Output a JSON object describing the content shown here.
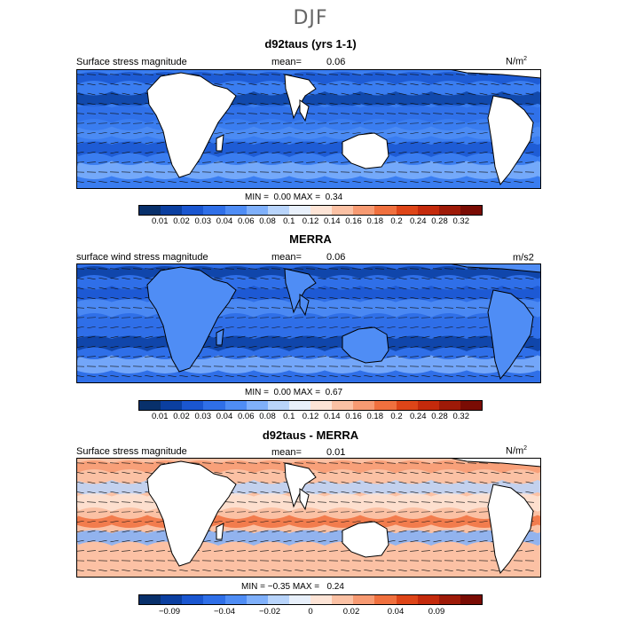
{
  "season": "DJF",
  "colors": [
    "#08306b",
    "#0b3fa0",
    "#1a56d0",
    "#2f6fe8",
    "#4f8df5",
    "#7fb0fb",
    "#b8d4fb",
    "#e8f0fb",
    "#fde4d6",
    "#fbc1a4",
    "#f79a72",
    "#f0703e",
    "#de4518",
    "#c42a0c",
    "#9e1a08",
    "#7a0c04"
  ],
  "panels": [
    {
      "title": "d92taus (yrs 1-1)",
      "left_label": "Surface stress magnitude",
      "mean_label": "mean=",
      "mean_value": "0.06",
      "units": "N/m",
      "units_sup": "2",
      "min_label": "MIN =",
      "min_value": "0.00",
      "max_label": "MAX =",
      "max_value": "0.34",
      "ticks": [
        "0.01",
        "0.02",
        "0.03",
        "0.04",
        "0.06",
        "0.08",
        "0.1",
        "0.12",
        "0.14",
        "0.16",
        "0.18",
        "0.2",
        "0.24",
        "0.28",
        "0.32"
      ]
    },
    {
      "title": "MERRA",
      "left_label": "surface wind stress magnitude",
      "mean_label": "mean=",
      "mean_value": "0.06",
      "units": "m/s2",
      "units_sup": "",
      "min_label": "MIN =",
      "min_value": "0.00",
      "max_label": "MAX =",
      "max_value": "0.67",
      "ticks": [
        "0.01",
        "0.02",
        "0.03",
        "0.04",
        "0.06",
        "0.08",
        "0.1",
        "0.12",
        "0.14",
        "0.16",
        "0.18",
        "0.2",
        "0.24",
        "0.28",
        "0.32"
      ]
    },
    {
      "title": "d92taus - MERRA",
      "left_label": "Surface stress magnitude",
      "mean_label": "mean=",
      "mean_value": "0.01",
      "units": "N/m",
      "units_sup": "2",
      "min_label": "MIN =",
      "min_value": "−0.35",
      "max_label": "MAX =",
      "max_value": "0.24",
      "ticks": [
        "−0.09",
        "−0.04",
        "−0.02",
        "0",
        "0.02",
        "0.04",
        "0.09"
      ]
    }
  ]
}
